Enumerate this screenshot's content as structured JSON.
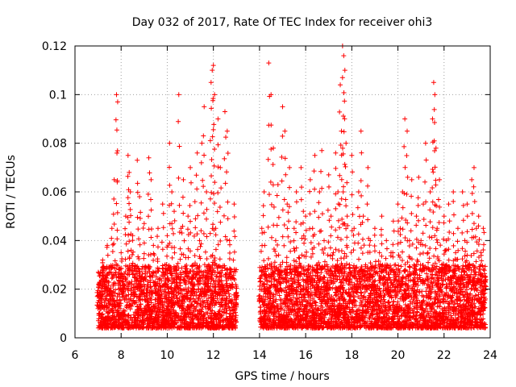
{
  "chart_data": {
    "type": "scatter",
    "title": "Day 032 of 2017, Rate Of TEC Index for receiver ohi3",
    "xlabel": "GPS time / hours",
    "ylabel": "ROTI / TECUs",
    "xlim": [
      6,
      24
    ],
    "ylim": [
      0,
      0.12
    ],
    "x_ticks": [
      6,
      8,
      10,
      12,
      14,
      16,
      18,
      20,
      22,
      24
    ],
    "x_tick_labels": [
      "6",
      "8",
      "10",
      "12",
      "14",
      "16",
      "18",
      "20",
      "22",
      "24"
    ],
    "y_ticks": [
      0,
      0.02,
      0.04,
      0.06,
      0.08,
      0.1,
      0.12
    ],
    "y_tick_labels": [
      "0",
      "0.02",
      "0.04",
      "0.06",
      "0.08",
      "0.1",
      "0.12"
    ],
    "grid": true,
    "marker": "+",
    "marker_color": "#ff0000",
    "series": [
      {
        "name": "ROTI",
        "points": [
          [
            7.0,
            0.012
          ],
          [
            7.1,
            0.018
          ],
          [
            7.2,
            0.032
          ],
          [
            7.3,
            0.022
          ],
          [
            7.4,
            0.038
          ],
          [
            7.5,
            0.015
          ],
          [
            7.6,
            0.045
          ],
          [
            7.7,
            0.065
          ],
          [
            7.8,
            0.1
          ],
          [
            7.85,
            0.097
          ],
          [
            7.9,
            0.028
          ],
          [
            8.0,
            0.035
          ],
          [
            8.1,
            0.02
          ],
          [
            8.2,
            0.05
          ],
          [
            8.3,
            0.075
          ],
          [
            8.35,
            0.068
          ],
          [
            8.4,
            0.06
          ],
          [
            8.5,
            0.042
          ],
          [
            8.6,
            0.018
          ],
          [
            8.7,
            0.073
          ],
          [
            8.8,
            0.058
          ],
          [
            8.9,
            0.025
          ],
          [
            9.0,
            0.047
          ],
          [
            9.1,
            0.011
          ],
          [
            9.2,
            0.074
          ],
          [
            9.3,
            0.065
          ],
          [
            9.4,
            0.038
          ],
          [
            9.5,
            0.02
          ],
          [
            9.6,
            0.045
          ],
          [
            9.7,
            0.016
          ],
          [
            9.8,
            0.055
          ],
          [
            9.9,
            0.03
          ],
          [
            10.0,
            0.042
          ],
          [
            10.1,
            0.08
          ],
          [
            10.2,
            0.06
          ],
          [
            10.3,
            0.052
          ],
          [
            10.4,
            0.028
          ],
          [
            10.5,
            0.1
          ],
          [
            10.6,
            0.045
          ],
          [
            10.7,
            0.065
          ],
          [
            10.8,
            0.033
          ],
          [
            10.9,
            0.05
          ],
          [
            11.0,
            0.07
          ],
          [
            11.1,
            0.02
          ],
          [
            11.2,
            0.056
          ],
          [
            11.3,
            0.076
          ],
          [
            11.4,
            0.04
          ],
          [
            11.5,
            0.08
          ],
          [
            11.6,
            0.095
          ],
          [
            11.7,
            0.06
          ],
          [
            11.8,
            0.03
          ],
          [
            11.9,
            0.105
          ],
          [
            11.95,
            0.11
          ],
          [
            12.0,
            0.112
          ],
          [
            12.05,
            0.1
          ],
          [
            12.1,
            0.045
          ],
          [
            12.2,
            0.09
          ],
          [
            12.3,
            0.07
          ],
          [
            12.4,
            0.02
          ],
          [
            12.5,
            0.093
          ],
          [
            12.6,
            0.085
          ],
          [
            12.7,
            0.04
          ],
          [
            12.8,
            0.025
          ],
          [
            12.9,
            0.055
          ],
          [
            13.0,
            0.018
          ],
          [
            14.0,
            0.015
          ],
          [
            14.1,
            0.045
          ],
          [
            14.2,
            0.06
          ],
          [
            14.3,
            0.025
          ],
          [
            14.4,
            0.113
          ],
          [
            14.5,
            0.1
          ],
          [
            14.6,
            0.078
          ],
          [
            14.7,
            0.04
          ],
          [
            14.8,
            0.063
          ],
          [
            14.9,
            0.03
          ],
          [
            15.0,
            0.095
          ],
          [
            15.1,
            0.085
          ],
          [
            15.2,
            0.055
          ],
          [
            15.3,
            0.07
          ],
          [
            15.4,
            0.02
          ],
          [
            15.5,
            0.045
          ],
          [
            15.6,
            0.06
          ],
          [
            15.7,
            0.033
          ],
          [
            15.8,
            0.07
          ],
          [
            15.9,
            0.052
          ],
          [
            16.0,
            0.05
          ],
          [
            16.1,
            0.025
          ],
          [
            16.2,
            0.065
          ],
          [
            16.3,
            0.045
          ],
          [
            16.4,
            0.075
          ],
          [
            16.5,
            0.03
          ],
          [
            16.6,
            0.06
          ],
          [
            16.7,
            0.077
          ],
          [
            16.8,
            0.04
          ],
          [
            16.9,
            0.02
          ],
          [
            17.0,
            0.067
          ],
          [
            17.1,
            0.05
          ],
          [
            17.2,
            0.035
          ],
          [
            17.3,
            0.076
          ],
          [
            17.4,
            0.06
          ],
          [
            17.5,
            0.104
          ],
          [
            17.55,
            0.085
          ],
          [
            17.6,
            0.12
          ],
          [
            17.65,
            0.116
          ],
          [
            17.7,
            0.11
          ],
          [
            17.75,
            0.08
          ],
          [
            17.8,
            0.05
          ],
          [
            17.9,
            0.03
          ],
          [
            18.0,
            0.075
          ],
          [
            18.1,
            0.045
          ],
          [
            18.2,
            0.02
          ],
          [
            18.3,
            0.06
          ],
          [
            18.4,
            0.085
          ],
          [
            18.5,
            0.05
          ],
          [
            18.6,
            0.03
          ],
          [
            18.7,
            0.07
          ],
          [
            18.8,
            0.04
          ],
          [
            18.9,
            0.025
          ],
          [
            19.0,
            0.045
          ],
          [
            19.1,
            0.015
          ],
          [
            19.2,
            0.035
          ],
          [
            19.3,
            0.05
          ],
          [
            19.4,
            0.028
          ],
          [
            19.5,
            0.04
          ],
          [
            19.6,
            0.02
          ],
          [
            19.7,
            0.035
          ],
          [
            19.8,
            0.048
          ],
          [
            19.9,
            0.03
          ],
          [
            20.0,
            0.055
          ],
          [
            20.1,
            0.045
          ],
          [
            20.2,
            0.06
          ],
          [
            20.3,
            0.09
          ],
          [
            20.4,
            0.085
          ],
          [
            20.5,
            0.04
          ],
          [
            20.6,
            0.065
          ],
          [
            20.7,
            0.03
          ],
          [
            20.8,
            0.05
          ],
          [
            20.9,
            0.066
          ],
          [
            21.0,
            0.04
          ],
          [
            21.1,
            0.055
          ],
          [
            21.2,
            0.08
          ],
          [
            21.3,
            0.035
          ],
          [
            21.4,
            0.06
          ],
          [
            21.5,
            0.09
          ],
          [
            21.55,
            0.105
          ],
          [
            21.6,
            0.1
          ],
          [
            21.65,
            0.078
          ],
          [
            21.7,
            0.045
          ],
          [
            21.8,
            0.065
          ],
          [
            21.9,
            0.03
          ],
          [
            22.0,
            0.05
          ],
          [
            22.1,
            0.04
          ],
          [
            22.2,
            0.055
          ],
          [
            22.3,
            0.025
          ],
          [
            22.4,
            0.06
          ],
          [
            22.5,
            0.035
          ],
          [
            22.6,
            0.045
          ],
          [
            22.7,
            0.02
          ],
          [
            22.8,
            0.06
          ],
          [
            22.9,
            0.04
          ],
          [
            23.0,
            0.055
          ],
          [
            23.1,
            0.03
          ],
          [
            23.2,
            0.065
          ],
          [
            23.3,
            0.07
          ],
          [
            23.4,
            0.045
          ],
          [
            23.5,
            0.05
          ],
          [
            23.6,
            0.035
          ],
          [
            23.7,
            0.045
          ],
          [
            23.8,
            0.025
          ]
        ],
        "baseline_band": {
          "segments": [
            [
              7.0,
              13.0
            ],
            [
              14.0,
              23.8
            ]
          ],
          "y_range": [
            0.004,
            0.03
          ],
          "density_per_hour": 320
        }
      }
    ]
  }
}
